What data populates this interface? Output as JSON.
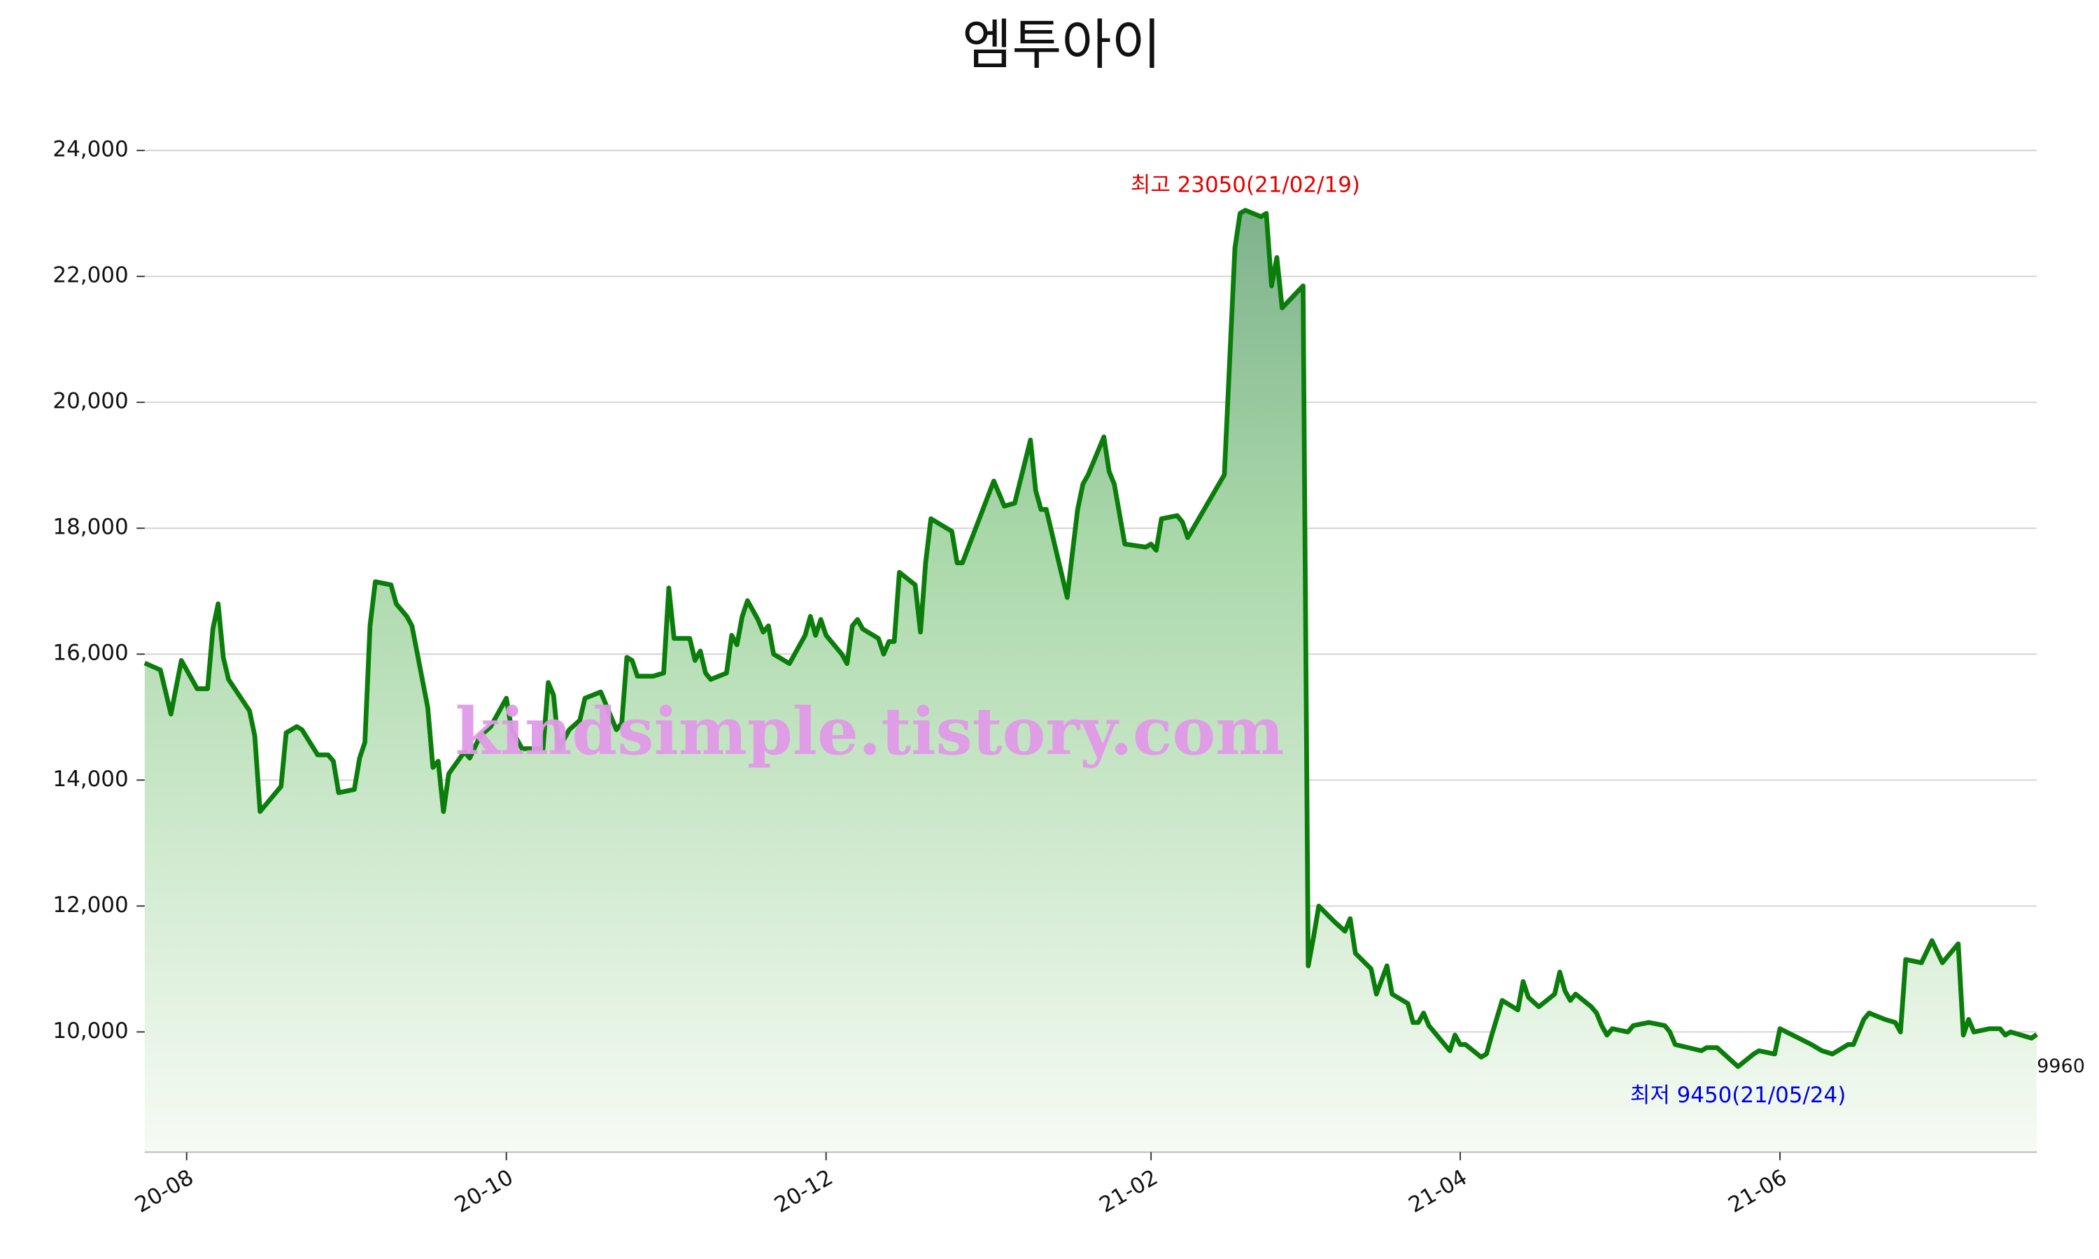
{
  "chart_data": {
    "type": "line",
    "title": "엠투아이",
    "x": [
      "2020-07-24",
      "2020-07-27",
      "2020-07-29",
      "2020-07-31",
      "2020-08-03",
      "2020-08-05",
      "2020-08-06",
      "2020-08-07",
      "2020-08-08",
      "2020-08-09",
      "2020-08-13",
      "2020-08-14",
      "2020-08-15",
      "2020-08-19",
      "2020-08-20",
      "2020-08-22",
      "2020-08-23",
      "2020-08-26",
      "2020-08-28",
      "2020-08-29",
      "2020-08-30",
      "2020-09-02",
      "2020-09-03",
      "2020-09-04",
      "2020-09-05",
      "2020-09-06",
      "2020-09-09",
      "2020-09-10",
      "2020-09-12",
      "2020-09-13",
      "2020-09-16",
      "2020-09-17",
      "2020-09-18",
      "2020-09-19",
      "2020-09-20",
      "2020-09-23",
      "2020-09-24",
      "2020-09-26",
      "2020-09-28",
      "2020-10-01",
      "2020-10-02",
      "2020-10-04",
      "2020-10-08",
      "2020-10-09",
      "2020-10-10",
      "2020-10-11",
      "2020-10-13",
      "2020-10-15",
      "2020-10-16",
      "2020-10-19",
      "2020-10-21",
      "2020-10-22",
      "2020-10-23",
      "2020-10-24",
      "2020-10-25",
      "2020-10-26",
      "2020-10-29",
      "2020-10-31",
      "2020-11-01",
      "2020-11-02",
      "2020-11-05",
      "2020-11-06",
      "2020-11-07",
      "2020-11-08",
      "2020-11-09",
      "2020-11-12",
      "2020-11-13",
      "2020-11-14",
      "2020-11-15",
      "2020-11-16",
      "2020-11-18",
      "2020-11-19",
      "2020-11-20",
      "2020-11-21",
      "2020-11-24",
      "2020-11-27",
      "2020-11-28",
      "2020-11-29",
      "2020-11-30",
      "2020-12-01",
      "2020-12-04",
      "2020-12-05",
      "2020-12-06",
      "2020-12-07",
      "2020-12-08",
      "2020-12-11",
      "2020-12-12",
      "2020-12-13",
      "2020-12-14",
      "2020-12-15",
      "2020-12-18",
      "2020-12-19",
      "2020-12-20",
      "2020-12-21",
      "2020-12-25",
      "2020-12-26",
      "2020-12-27",
      "2021-01-02",
      "2021-01-04",
      "2021-01-06",
      "2021-01-09",
      "2021-01-10",
      "2021-01-11",
      "2021-01-12",
      "2021-01-16",
      "2021-01-17",
      "2021-01-18",
      "2021-01-19",
      "2021-01-20",
      "2021-01-23",
      "2021-01-24",
      "2021-01-25",
      "2021-01-27",
      "2021-01-31",
      "2021-02-01",
      "2021-02-02",
      "2021-02-03",
      "2021-02-06",
      "2021-02-07",
      "2021-02-08",
      "2021-02-15",
      "2021-02-17",
      "2021-02-18",
      "2021-02-19",
      "2021-02-22",
      "2021-02-23",
      "2021-02-24",
      "2021-02-25",
      "2021-02-26",
      "2021-03-02",
      "2021-03-03",
      "2021-03-04",
      "2021-03-05",
      "2021-03-08",
      "2021-03-10",
      "2021-03-11",
      "2021-03-12",
      "2021-03-15",
      "2021-03-16",
      "2021-03-18",
      "2021-03-19",
      "2021-03-22",
      "2021-03-23",
      "2021-03-24",
      "2021-03-25",
      "2021-03-26",
      "2021-03-30",
      "2021-03-31",
      "2021-04-01",
      "2021-04-02",
      "2021-04-05",
      "2021-04-06",
      "2021-04-07",
      "2021-04-09",
      "2021-04-12",
      "2021-04-13",
      "2021-04-14",
      "2021-04-16",
      "2021-04-19",
      "2021-04-20",
      "2021-04-21",
      "2021-04-22",
      "2021-04-23",
      "2021-04-26",
      "2021-04-27",
      "2021-04-28",
      "2021-04-29",
      "2021-04-30",
      "2021-05-03",
      "2021-05-04",
      "2021-05-07",
      "2021-05-10",
      "2021-05-11",
      "2021-05-12",
      "2021-05-17",
      "2021-05-18",
      "2021-05-20",
      "2021-05-24",
      "2021-05-27",
      "2021-05-28",
      "2021-05-31",
      "2021-06-01",
      "2021-06-07",
      "2021-06-09",
      "2021-06-11",
      "2021-06-14",
      "2021-06-15",
      "2021-06-17",
      "2021-06-18",
      "2021-06-21",
      "2021-06-23",
      "2021-06-24",
      "2021-06-25",
      "2021-06-28",
      "2021-06-30",
      "2021-07-02",
      "2021-07-05",
      "2021-07-06",
      "2021-07-07",
      "2021-07-08",
      "2021-07-11",
      "2021-07-13",
      "2021-07-14",
      "2021-07-15",
      "2021-07-19",
      "2021-07-20"
    ],
    "series": [
      {
        "color": "#0a7d0a",
        "values": [
          15860,
          15750,
          15050,
          15900,
          15450,
          15450,
          16400,
          16800,
          15950,
          15600,
          15100,
          14700,
          13500,
          13900,
          14750,
          14850,
          14800,
          14400,
          14400,
          14300,
          13800,
          13850,
          14350,
          14600,
          16450,
          17150,
          17100,
          16800,
          16600,
          16450,
          15150,
          14200,
          14300,
          13500,
          14100,
          14450,
          14350,
          14700,
          14850,
          15300,
          14800,
          14500,
          14500,
          15550,
          15350,
          14500,
          14800,
          14950,
          15300,
          15400,
          15000,
          14800,
          14900,
          15950,
          15900,
          15650,
          15650,
          15700,
          17050,
          16250,
          16250,
          15900,
          16050,
          15700,
          15600,
          15700,
          16300,
          16150,
          16600,
          16850,
          16550,
          16350,
          16450,
          16000,
          15850,
          16300,
          16600,
          16300,
          16550,
          16300,
          16000,
          15850,
          16450,
          16550,
          16400,
          16250,
          16000,
          16200,
          16200,
          17300,
          17100,
          16350,
          17450,
          18150,
          17950,
          17450,
          17450,
          18750,
          18350,
          18400,
          19400,
          18600,
          18300,
          18300,
          16900,
          17600,
          18300,
          18700,
          18850,
          19450,
          18900,
          18700,
          17750,
          17700,
          17750,
          17650,
          18150,
          18200,
          18100,
          17850,
          18850,
          22450,
          23000,
          23050,
          22950,
          23000,
          21850,
          22300,
          21500,
          21850,
          11050,
          11500,
          12000,
          11750,
          11600,
          11800,
          11250,
          11000,
          10600,
          11050,
          10600,
          10450,
          10150,
          10150,
          10300,
          10100,
          9700,
          9950,
          9800,
          9800,
          9600,
          9650,
          9950,
          10500,
          10350,
          10800,
          10550,
          10400,
          10600,
          10950,
          10650,
          10500,
          10600,
          10400,
          10300,
          10100,
          9950,
          10050,
          10000,
          10100,
          10150,
          10100,
          10000,
          9800,
          9700,
          9750,
          9750,
          9450,
          9650,
          9700,
          9650,
          10050,
          9800,
          9700,
          9650,
          9800,
          9800,
          10200,
          10300,
          10200,
          10150,
          10000,
          11150,
          11100,
          11450,
          11100,
          11400,
          9950,
          10200,
          10000,
          10050,
          10050,
          9950,
          10000,
          9900,
          9960
        ]
      }
    ],
    "xlim": [
      "2020-07-24",
      "2021-07-20"
    ],
    "xticks": [
      {
        "value": "2020-08-01",
        "label": "20-08"
      },
      {
        "value": "2020-10-01",
        "label": "20-10"
      },
      {
        "value": "2020-12-01",
        "label": "20-12"
      },
      {
        "value": "2021-02-01",
        "label": "21-02"
      },
      {
        "value": "2021-04-01",
        "label": "21-04"
      },
      {
        "value": "2021-06-01",
        "label": "21-06"
      }
    ],
    "ylim": [
      8090,
      24500
    ],
    "yticks": [
      {
        "value": 10000,
        "label": "10,000"
      },
      {
        "value": 12000,
        "label": "12,000"
      },
      {
        "value": 14000,
        "label": "14,000"
      },
      {
        "value": 16000,
        "label": "16,000"
      },
      {
        "value": 18000,
        "label": "18,000"
      },
      {
        "value": 20000,
        "label": "20,000"
      },
      {
        "value": 22000,
        "label": "22,000"
      },
      {
        "value": 24000,
        "label": "24,000"
      }
    ],
    "grid": true,
    "annotations": {
      "max": "최고 23050(21/02/19)",
      "min": "최저 9450(21/05/24)",
      "last": "9960"
    },
    "watermark": "kindsimple.tistory.com"
  }
}
